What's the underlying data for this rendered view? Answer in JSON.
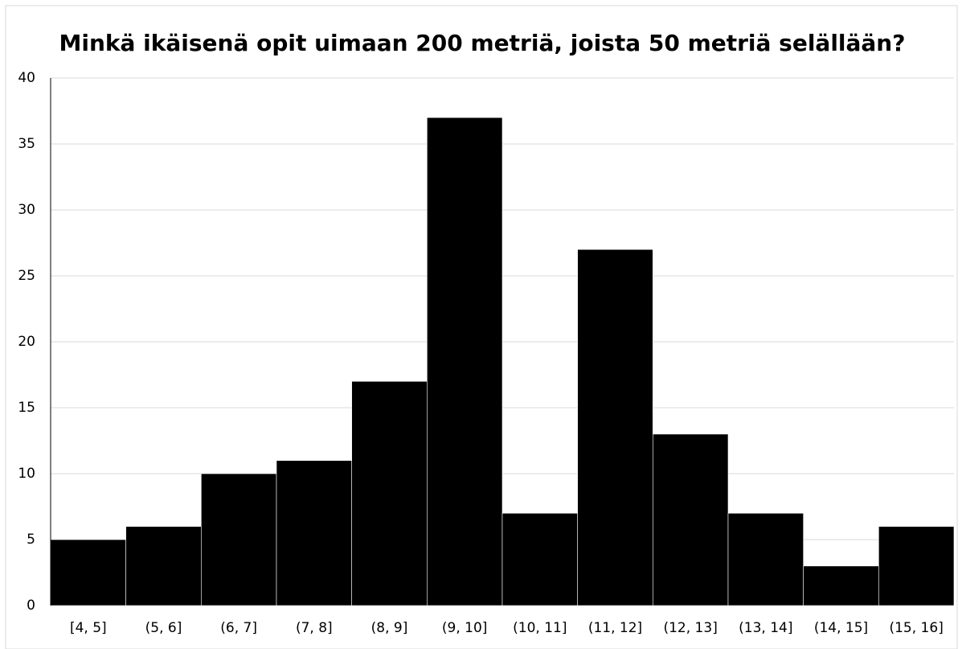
{
  "chart_data": {
    "type": "bar",
    "title": "Minkä ikäisenä opit uimaan 200 metriä, joista 50 metriä selällään?",
    "categories": [
      "[4, 5]",
      "(5, 6]",
      "(6, 7]",
      "(7, 8]",
      "(8, 9]",
      "(9, 10]",
      "(10, 11]",
      "(11, 12]",
      "(12, 13]",
      "(13, 14]",
      "(14, 15]",
      "(15, 16]"
    ],
    "values": [
      5,
      6,
      10,
      11,
      17,
      37,
      7,
      27,
      13,
      7,
      3,
      6
    ],
    "color": "#000000",
    "ylim": [
      0,
      40
    ],
    "yticks": [
      0,
      5,
      10,
      15,
      20,
      25,
      30,
      35,
      40
    ],
    "grid": true
  }
}
